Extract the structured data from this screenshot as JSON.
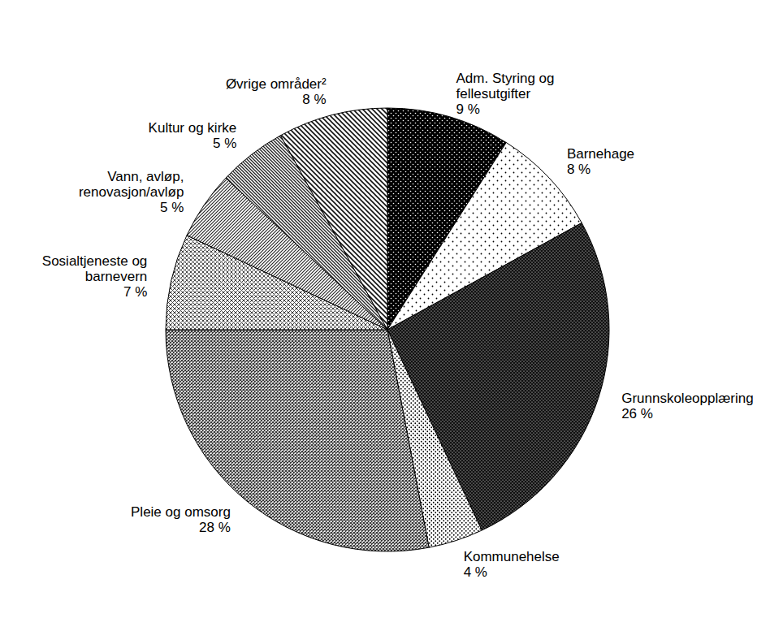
{
  "chart_data": {
    "type": "pie",
    "categories": [
      "Adm. Styring og\nfellesutgifter",
      "Barnehage",
      "Grunnskoleopplæring",
      "Kommunehelse",
      "Pleie og omsorg",
      "Sosialtjeneste og\nbarnevern",
      "Vann, avløp,\nrenovasjon/avløp",
      "Kultur og kirke",
      "Øvrige områder²"
    ],
    "values": [
      9,
      8,
      26,
      4,
      28,
      7,
      5,
      5,
      8
    ],
    "value_labels": [
      "9 %",
      "8 %",
      "26 %",
      "4 %",
      "28 %",
      "7 %",
      "5 %",
      "5 %",
      "8 %"
    ],
    "data_labels": true
  }
}
